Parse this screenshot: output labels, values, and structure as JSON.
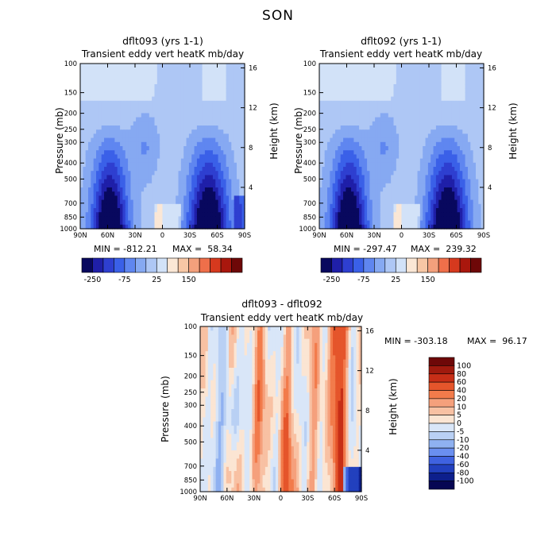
{
  "figure_title": "SON",
  "chart_data": [
    {
      "type": "heatmap",
      "title": "dflt093 (yrs 1-1)",
      "subtitle": "Transient eddy vert heatK mb/day",
      "ylabel": "Pressure (mb)",
      "ylabel_right": "Height (km)",
      "x_tick_labels": [
        "90N",
        "60N",
        "30N",
        "0",
        "30S",
        "60S",
        "90S"
      ],
      "y_tick_labels": [
        "100",
        "150",
        "200",
        "250",
        "300",
        "400",
        "500",
        "700",
        "850",
        "1000"
      ],
      "y_right_tick_labels": [
        "16",
        "12",
        "8",
        "4"
      ],
      "min_text": "MIN = -812.21",
      "max_text": "MAX =  58.34",
      "min": -812.21,
      "max": 58.34,
      "colorbar_labels": [
        "-250",
        "-75",
        "25",
        "150"
      ]
    },
    {
      "type": "heatmap",
      "title": "dflt092 (yrs 1-1)",
      "subtitle": "Transient eddy vert heatK mb/day",
      "ylabel": "Pressure (mb)",
      "ylabel_right": "Height (km)",
      "x_tick_labels": [
        "90N",
        "60N",
        "30N",
        "0",
        "30S",
        "60S",
        "90S"
      ],
      "y_tick_labels": [
        "100",
        "150",
        "200",
        "250",
        "300",
        "400",
        "500",
        "700",
        "850",
        "1000"
      ],
      "y_right_tick_labels": [
        "16",
        "12",
        "8",
        "4"
      ],
      "min_text": "MIN = -297.47",
      "max_text": "MAX =  239.32",
      "min": -297.47,
      "max": 239.32,
      "colorbar_labels": [
        "-250",
        "-75",
        "25",
        "150"
      ]
    },
    {
      "type": "heatmap",
      "title": "dflt093 - dflt092",
      "subtitle": "Transient eddy vert heatK mb/day",
      "ylabel": "Pressure (mb)",
      "ylabel_right": "Height (km)",
      "x_tick_labels": [
        "90N",
        "60N",
        "30N",
        "0",
        "30S",
        "60S",
        "90S"
      ],
      "y_tick_labels": [
        "100",
        "150",
        "200",
        "250",
        "300",
        "400",
        "500",
        "700",
        "850",
        "1000"
      ],
      "y_right_tick_labels": [
        "16",
        "12",
        "8",
        "4"
      ],
      "min_text": "MIN = -303.18",
      "max_text": "MAX =  96.17",
      "min": -303.18,
      "max": 96.17,
      "colorbar_labels": [
        "100",
        "80",
        "60",
        "40",
        "20",
        "10",
        "5",
        "0",
        "-5",
        "-10",
        "-20",
        "-40",
        "-60",
        "-80",
        "-100"
      ]
    }
  ],
  "colors": {
    "top_colorbar": [
      "#08085e",
      "#1f1fa8",
      "#2e3fd0",
      "#3a60e8",
      "#5f86f0",
      "#86a9f2",
      "#aec7f5",
      "#d2e2f8",
      "#fbe7d5",
      "#f7c7a5",
      "#f3a07c",
      "#ef6f4a",
      "#d6391e",
      "#a9170d",
      "#6e0808"
    ],
    "diff_colorbar": [
      "#6e0808",
      "#a01a0e",
      "#c72e17",
      "#e5552b",
      "#f27b4b",
      "#f5a07c",
      "#f8c1a3",
      "#fbe5d3",
      "#d9e6f8",
      "#b9d0f4",
      "#8fb1f1",
      "#6a8ff0",
      "#3f62e0",
      "#2240be",
      "#0d1f8c",
      "#060653"
    ]
  }
}
